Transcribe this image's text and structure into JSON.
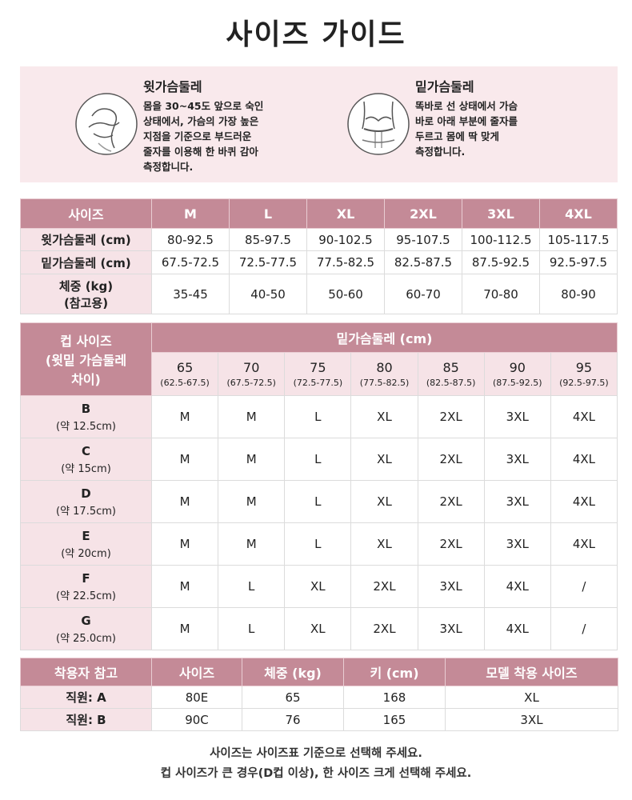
{
  "title": "사이즈 가이드",
  "measure_guide": [
    {
      "label": "윗가슴둘레",
      "lines": [
        "몸을 30~45도 앞으로 숙인",
        "상태에서, 가슴의 가장 높은",
        "지점을 기준으로 부드러운",
        "줄자를 이용해 한 바퀴 감아",
        "측정합니다."
      ]
    },
    {
      "label": "밑가슴둘레",
      "lines": [
        "똑바로 선 상태에서 가슴",
        "바로 아래 부분에 줄자를",
        "두르고 몸에 딱 맞게",
        "측정합니다."
      ]
    }
  ],
  "size_table": {
    "header": [
      "사이즈",
      "M",
      "L",
      "XL",
      "2XL",
      "3XL",
      "4XL"
    ],
    "rows": [
      {
        "label": [
          "윗가슴둘레 (cm)"
        ],
        "cells": [
          "80-92.5",
          "85-97.5",
          "90-102.5",
          "95-107.5",
          "100-112.5",
          "105-117.5"
        ]
      },
      {
        "label": [
          "밑가슴둘레 (cm)"
        ],
        "cells": [
          "67.5-72.5",
          "72.5-77.5",
          "77.5-82.5",
          "82.5-87.5",
          "87.5-92.5",
          "92.5-97.5"
        ]
      },
      {
        "label": [
          "체중 (kg)",
          "(참고용)"
        ],
        "cells": [
          "35-45",
          "40-50",
          "50-60",
          "60-70",
          "70-80",
          "80-90"
        ]
      }
    ]
  },
  "cup_table": {
    "corner": [
      "컵 사이즈",
      "(윗밑 가슴둘레",
      "차이)"
    ],
    "group_header": "밑가슴둘레 (cm)",
    "bands": [
      {
        "size": "65",
        "range": "(62.5-67.5)"
      },
      {
        "size": "70",
        "range": "(67.5-72.5)"
      },
      {
        "size": "75",
        "range": "(72.5-77.5)"
      },
      {
        "size": "80",
        "range": "(77.5-82.5)"
      },
      {
        "size": "85",
        "range": "(82.5-87.5)"
      },
      {
        "size": "90",
        "range": "(87.5-92.5)"
      },
      {
        "size": "95",
        "range": "(92.5-97.5)"
      }
    ],
    "rows": [
      {
        "cup": "B",
        "diff": "(약 12.5cm)",
        "cells": [
          "M",
          "M",
          "L",
          "XL",
          "2XL",
          "3XL",
          "4XL"
        ]
      },
      {
        "cup": "C",
        "diff": "(약 15cm)",
        "cells": [
          "M",
          "M",
          "L",
          "XL",
          "2XL",
          "3XL",
          "4XL"
        ]
      },
      {
        "cup": "D",
        "diff": "(약 17.5cm)",
        "cells": [
          "M",
          "M",
          "L",
          "XL",
          "2XL",
          "3XL",
          "4XL"
        ]
      },
      {
        "cup": "E",
        "diff": "(약 20cm)",
        "cells": [
          "M",
          "M",
          "L",
          "XL",
          "2XL",
          "3XL",
          "4XL"
        ]
      },
      {
        "cup": "F",
        "diff": "(약 22.5cm)",
        "cells": [
          "M",
          "L",
          "XL",
          "2XL",
          "3XL",
          "4XL",
          "/"
        ]
      },
      {
        "cup": "G",
        "diff": "(약 25.0cm)",
        "cells": [
          "M",
          "L",
          "XL",
          "2XL",
          "3XL",
          "4XL",
          "/"
        ]
      }
    ]
  },
  "wearer_table": {
    "header": [
      "착용자 참고",
      "사이즈",
      "체중 (kg)",
      "키 (cm)",
      "모델 착용 사이즈"
    ],
    "rows": [
      [
        "직원: A",
        "80E",
        "65",
        "168",
        "XL"
      ],
      [
        "직원: B",
        "90C",
        "76",
        "165",
        "3XL"
      ]
    ]
  },
  "footer": [
    "사이즈는 사이즈표 기준으로 선택해 주세요.",
    "컵 사이즈가 큰 경우(D컵 이상), 한 사이즈 크게 선택해 주세요."
  ]
}
